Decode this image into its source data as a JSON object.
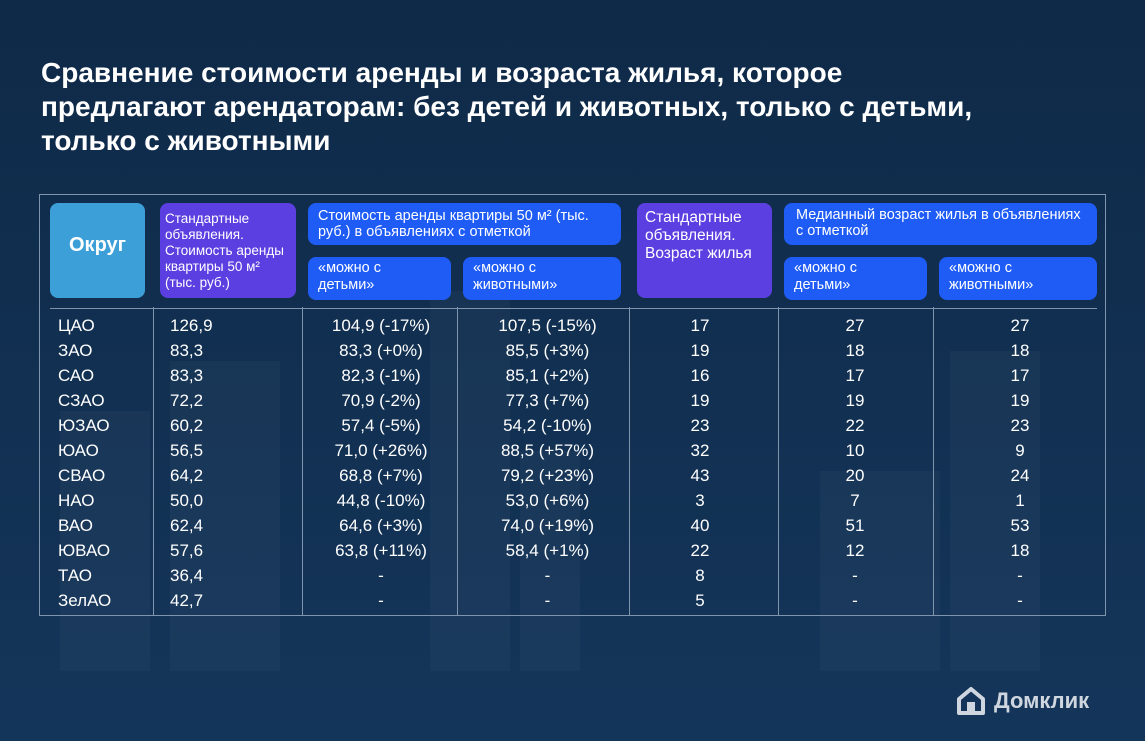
{
  "title": "Сравнение стоимости аренды и возраста жилья, которое предлагают арендаторам: без детей и животных, только с детьми, только с животными",
  "chart_data": {
    "type": "table",
    "headers": {
      "okrug": "Округ",
      "std_price": "Стандартные объявления. Стоимость аренды квартиры 50 м² (тыс. руб.)",
      "group_price": "Стоимость аренды квартиры 50 м² (тыс. руб.) в объявлениях с отметкой",
      "group_price_children": "«можно с детьми»",
      "group_price_animals": "«можно с животными»",
      "std_age": "Стандартные объявления. Возраст жилья",
      "group_age": "Медианный возраст жилья в объявлениях с отметкой",
      "group_age_children": "«можно с детьми»",
      "group_age_animals": "«можно с животными»"
    },
    "rows": [
      {
        "okrug": "ЦАО",
        "std_price": "126,9",
        "price_children": "104,9 (-17%)",
        "price_animals": "107,5 (-15%)",
        "std_age": "17",
        "age_children": "27",
        "age_animals": "27"
      },
      {
        "okrug": "ЗАО",
        "std_price": "83,3",
        "price_children": "83,3 (+0%)",
        "price_animals": "85,5 (+3%)",
        "std_age": "19",
        "age_children": "18",
        "age_animals": "18"
      },
      {
        "okrug": "САО",
        "std_price": "83,3",
        "price_children": "82,3 (-1%)",
        "price_animals": "85,1 (+2%)",
        "std_age": "16",
        "age_children": "17",
        "age_animals": "17"
      },
      {
        "okrug": "СЗАО",
        "std_price": "72,2",
        "price_children": "70,9 (-2%)",
        "price_animals": "77,3 (+7%)",
        "std_age": "19",
        "age_children": "19",
        "age_animals": "19"
      },
      {
        "okrug": "ЮЗАО",
        "std_price": "60,2",
        "price_children": "57,4 (-5%)",
        "price_animals": "54,2 (-10%)",
        "std_age": "23",
        "age_children": "22",
        "age_animals": "23"
      },
      {
        "okrug": "ЮАО",
        "std_price": "56,5",
        "price_children": "71,0 (+26%)",
        "price_animals": "88,5 (+57%)",
        "std_age": "32",
        "age_children": "10",
        "age_animals": "9"
      },
      {
        "okrug": "СВАО",
        "std_price": "64,2",
        "price_children": "68,8 (+7%)",
        "price_animals": "79,2 (+23%)",
        "std_age": "43",
        "age_children": "20",
        "age_animals": "24"
      },
      {
        "okrug": "НАО",
        "std_price": "50,0",
        "price_children": "44,8 (-10%)",
        "price_animals": "53,0 (+6%)",
        "std_age": "3",
        "age_children": "7",
        "age_animals": "1"
      },
      {
        "okrug": "ВАО",
        "std_price": "62,4",
        "price_children": "64,6 (+3%)",
        "price_animals": "74,0 (+19%)",
        "std_age": "40",
        "age_children": "51",
        "age_animals": "53"
      },
      {
        "okrug": "ЮВАО",
        "std_price": "57,6",
        "price_children": "63,8 (+11%)",
        "price_animals": "58,4 (+1%)",
        "std_age": "22",
        "age_children": "12",
        "age_animals": "18"
      },
      {
        "okrug": "ТАО",
        "std_price": "36,4",
        "price_children": "-",
        "price_animals": "-",
        "std_age": "8",
        "age_children": "-",
        "age_animals": "-"
      },
      {
        "okrug": "ЗелАО",
        "std_price": "42,7",
        "price_children": "-",
        "price_animals": "-",
        "std_age": "5",
        "age_children": "-",
        "age_animals": "-"
      }
    ]
  },
  "logo": {
    "text": "Домклик",
    "icon": "house-icon"
  },
  "colors": {
    "background": "#14355a",
    "accent_blue": "#1f5cf5",
    "accent_purple": "#5b3fe0",
    "accent_cyan": "#3c9fd8"
  }
}
